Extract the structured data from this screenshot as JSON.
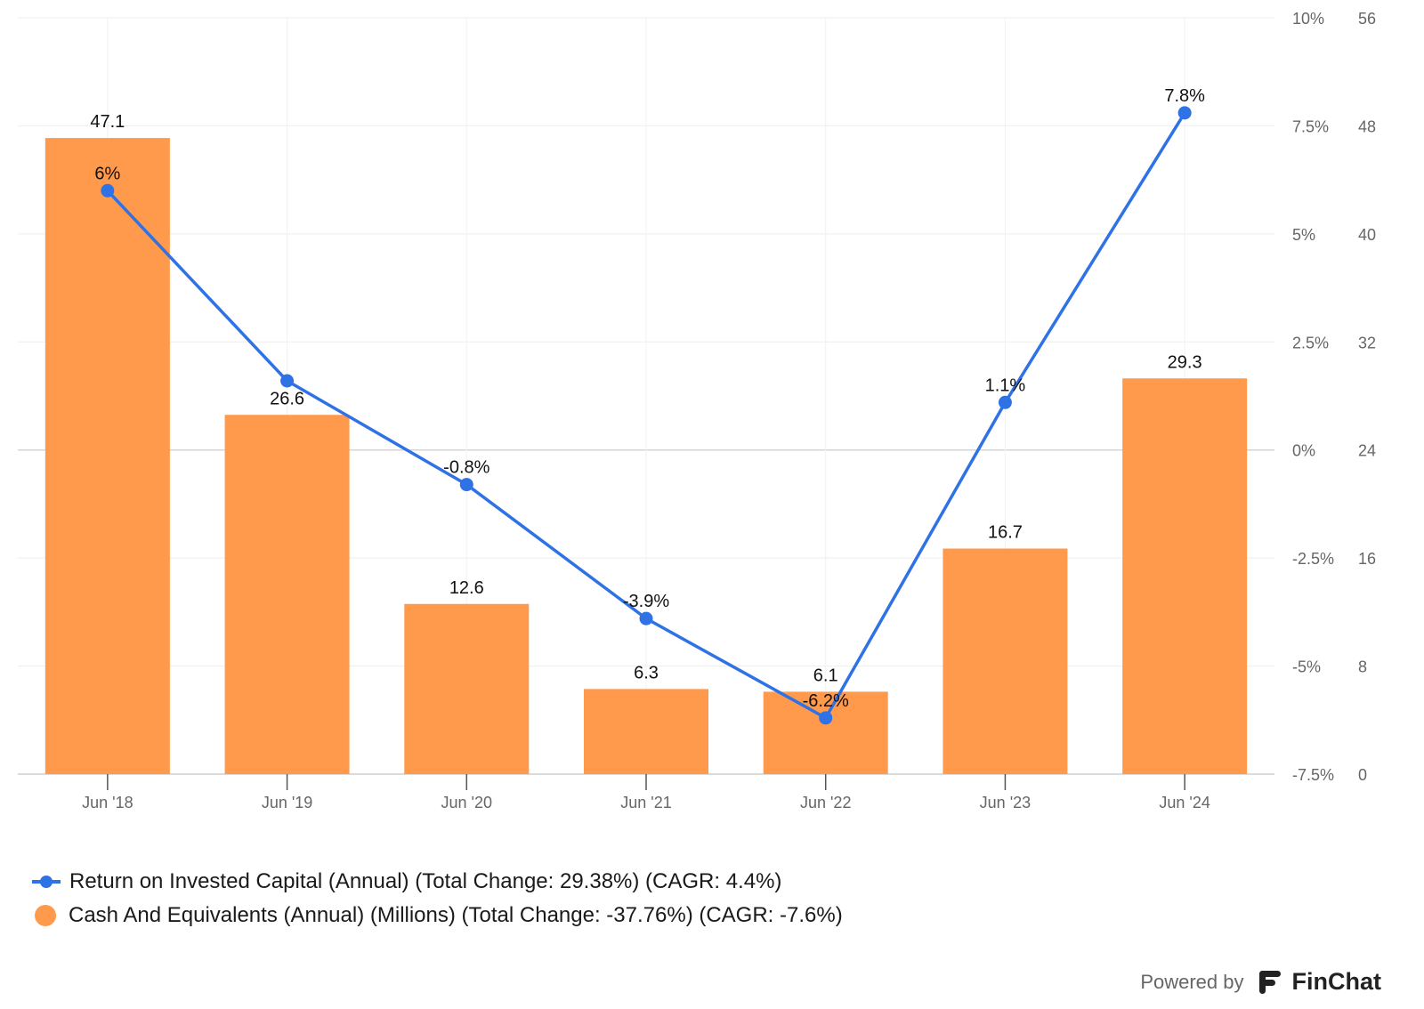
{
  "chart_data": {
    "type": "bar+line",
    "categories": [
      "Jun '18",
      "Jun '19",
      "Jun '20",
      "Jun '21",
      "Jun '22",
      "Jun '23",
      "Jun '24"
    ],
    "series": [
      {
        "name": "Cash And Equivalents (Annual) (Millions) (Total Change: -37.76%) (CAGR: -7.6%)",
        "type": "bar",
        "axis": "right-outer",
        "values": [
          47.1,
          26.6,
          12.6,
          6.3,
          6.1,
          16.7,
          29.3
        ],
        "labels": [
          "47.1",
          "26.6",
          "12.6",
          "6.3",
          "6.1",
          "16.7",
          "29.3"
        ],
        "color": "#ff9a4d"
      },
      {
        "name": "Return on Invested Capital (Annual) (Total Change: 29.38%) (CAGR: 4.4%)",
        "type": "line",
        "axis": "right-inner",
        "values": [
          6.0,
          1.6,
          -0.8,
          -3.9,
          -6.2,
          1.1,
          7.8
        ],
        "labels": [
          "6%",
          "",
          "-0.8%",
          "-3.9%",
          "-6.2%",
          "1.1%",
          "7.8%"
        ],
        "color": "#2e72e6"
      }
    ],
    "y_axis_percent": {
      "range": [
        -7.5,
        10
      ],
      "ticks": [
        -7.5,
        -5,
        -2.5,
        0,
        2.5,
        5,
        7.5,
        10
      ],
      "tick_labels": [
        "-7.5%",
        "-5%",
        "-2.5%",
        "0%",
        "2.5%",
        "5%",
        "7.5%",
        "10%"
      ]
    },
    "y_axis_millions": {
      "range": [
        0,
        56
      ],
      "ticks": [
        0,
        8,
        16,
        24,
        32,
        40,
        48,
        56
      ],
      "tick_labels": [
        "0",
        "8",
        "16",
        "24",
        "32",
        "40",
        "48",
        "56"
      ]
    },
    "grid": true,
    "legend_position": "bottom-left"
  },
  "legend": [
    {
      "marker": "line",
      "color": "#2e72e6",
      "label": "Return on Invested Capital (Annual) (Total Change: 29.38%) (CAGR: 4.4%)"
    },
    {
      "marker": "dot",
      "color": "#ff9a4d",
      "label": "Cash And Equivalents (Annual) (Millions) (Total Change: -37.76%) (CAGR: -7.6%)"
    }
  ],
  "branding": {
    "powered_by": "Powered by",
    "brand": "FinChat"
  }
}
